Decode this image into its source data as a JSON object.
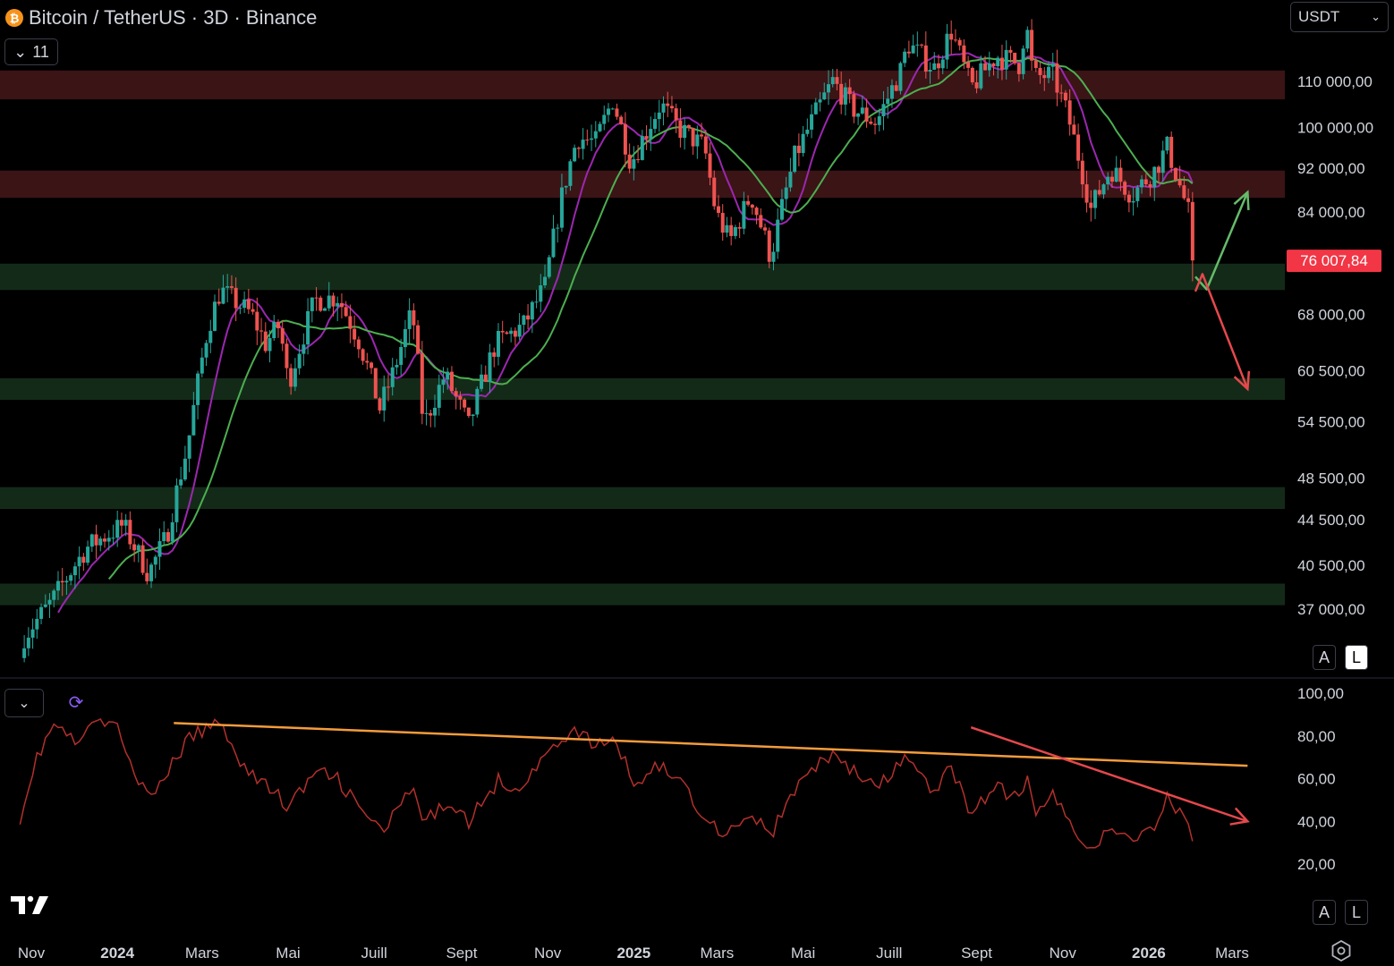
{
  "header": {
    "title": "Bitcoin / TetherUS · 3D · Binance",
    "coin_icon": "bitcoin-icon",
    "indicators_count": "11"
  },
  "currency": {
    "label": "USDT"
  },
  "scale_buttons": {
    "auto": "A",
    "log": "L"
  },
  "colors": {
    "up": "#26a69a",
    "down": "#ef5350",
    "ma_fast": "#9c27b0",
    "ma_slow": "#4caf50",
    "resistance_zone": "#3b1416",
    "support_zone": "#142a18",
    "rsi": "#b2302c",
    "trend_orange": "#f39c3c",
    "trend_red": "#e5484d"
  },
  "chart_data": [
    {
      "type": "candlestick",
      "title": "Bitcoin / TetherUS · 3D · Binance",
      "scale": "log",
      "ylim": [
        30600,
        125000
      ],
      "last_price": "76 007,84",
      "y_ticks": [
        {
          "value": 110000,
          "label": "110 000,00"
        },
        {
          "value": 100000,
          "label": "100 000,00"
        },
        {
          "value": 92000,
          "label": "92 000,00"
        },
        {
          "value": 84000,
          "label": "84 000,00"
        },
        {
          "value": 68000,
          "label": "68 000,00"
        },
        {
          "value": 60500,
          "label": "60 500,00"
        },
        {
          "value": 54500,
          "label": "54 500,00"
        },
        {
          "value": 48500,
          "label": "48 500,00"
        },
        {
          "value": 44500,
          "label": "44 500,00"
        },
        {
          "value": 40500,
          "label": "40 500,00"
        },
        {
          "value": 37000,
          "label": "37 000,00"
        }
      ],
      "x_ticks": [
        {
          "date": "2023-11-01",
          "label": "Nov",
          "bold": false
        },
        {
          "date": "2024-01-01",
          "label": "2024",
          "bold": true
        },
        {
          "date": "2024-03-01",
          "label": "Mars",
          "bold": false
        },
        {
          "date": "2024-05-01",
          "label": "Mai",
          "bold": false
        },
        {
          "date": "2024-07-01",
          "label": "Juill",
          "bold": false
        },
        {
          "date": "2024-09-01",
          "label": "Sept",
          "bold": false
        },
        {
          "date": "2024-11-01",
          "label": "Nov",
          "bold": false
        },
        {
          "date": "2025-01-01",
          "label": "2025",
          "bold": true
        },
        {
          "date": "2025-03-01",
          "label": "Mars",
          "bold": false
        },
        {
          "date": "2025-05-01",
          "label": "Mai",
          "bold": false
        },
        {
          "date": "2025-07-01",
          "label": "Juill",
          "bold": false
        },
        {
          "date": "2025-09-01",
          "label": "Sept",
          "bold": false
        },
        {
          "date": "2025-11-01",
          "label": "Nov",
          "bold": false
        },
        {
          "date": "2026-01-01",
          "label": "2026",
          "bold": true
        },
        {
          "date": "2026-03-01",
          "label": "Mars",
          "bold": false
        }
      ],
      "zones": [
        {
          "kind": "resistance",
          "from": 106000,
          "to": 112500
        },
        {
          "kind": "resistance",
          "from": 86500,
          "to": 91500
        },
        {
          "kind": "support",
          "from": 71500,
          "to": 75500
        },
        {
          "kind": "support",
          "from": 57000,
          "to": 59600
        },
        {
          "kind": "support",
          "from": 45500,
          "to": 47600
        },
        {
          "kind": "support",
          "from": 37300,
          "to": 39000
        }
      ],
      "close_anchors": [
        [
          "2023-10-27",
          35000
        ],
        [
          "2023-11-15",
          37500
        ],
        [
          "2023-12-10",
          42000
        ],
        [
          "2024-01-05",
          44000
        ],
        [
          "2024-01-23",
          39800
        ],
        [
          "2024-02-05",
          43000
        ],
        [
          "2024-02-20",
          52000
        ],
        [
          "2024-03-05",
          66000
        ],
        [
          "2024-03-14",
          71500
        ],
        [
          "2024-04-05",
          68000
        ],
        [
          "2024-04-15",
          64000
        ],
        [
          "2024-04-25",
          66500
        ],
        [
          "2024-05-01",
          58800
        ],
        [
          "2024-05-20",
          70000
        ],
        [
          "2024-06-05",
          70500
        ],
        [
          "2024-06-20",
          64500
        ],
        [
          "2024-07-05",
          56000
        ],
        [
          "2024-07-15",
          60500
        ],
        [
          "2024-07-28",
          68500
        ],
        [
          "2024-08-05",
          54000
        ],
        [
          "2024-08-20",
          60000
        ],
        [
          "2024-09-06",
          54000
        ],
        [
          "2024-09-25",
          64000
        ],
        [
          "2024-10-15",
          66500
        ],
        [
          "2024-10-30",
          72000
        ],
        [
          "2024-11-12",
          88000
        ],
        [
          "2024-11-22",
          98000
        ],
        [
          "2024-12-05",
          97000
        ],
        [
          "2024-12-17",
          106000
        ],
        [
          "2024-12-30",
          93000
        ],
        [
          "2025-01-20",
          105000
        ],
        [
          "2025-02-01",
          100000
        ],
        [
          "2025-02-20",
          96000
        ],
        [
          "2025-02-28",
          84000
        ],
        [
          "2025-03-10",
          79000
        ],
        [
          "2025-03-25",
          87000
        ],
        [
          "2025-04-08",
          76500
        ],
        [
          "2025-04-25",
          94000
        ],
        [
          "2025-05-10",
          103000
        ],
        [
          "2025-05-22",
          110000
        ],
        [
          "2025-06-05",
          104000
        ],
        [
          "2025-06-22",
          101000
        ],
        [
          "2025-07-10",
          113000
        ],
        [
          "2025-07-14",
          119000
        ],
        [
          "2025-08-02",
          113000
        ],
        [
          "2025-08-14",
          122000
        ],
        [
          "2025-08-28",
          108500
        ],
        [
          "2025-09-15",
          116000
        ],
        [
          "2025-10-01",
          114000
        ],
        [
          "2025-10-06",
          124000
        ],
        [
          "2025-10-11",
          111000
        ],
        [
          "2025-10-25",
          111500
        ],
        [
          "2025-11-05",
          102000
        ],
        [
          "2025-11-21",
          84500
        ],
        [
          "2025-12-05",
          92000
        ],
        [
          "2025-12-20",
          87000
        ],
        [
          "2026-01-05",
          91500
        ],
        [
          "2026-01-14",
          96000
        ],
        [
          "2026-01-22",
          89500
        ],
        [
          "2026-01-29",
          84000
        ],
        [
          "2026-02-03",
          76000
        ]
      ],
      "series": [
        {
          "name": "",
          "kind": "ma",
          "period": 9,
          "color": "#9c27b0"
        },
        {
          "name": "",
          "kind": "ma",
          "period": 21,
          "color": "#4caf50"
        }
      ],
      "annotations": [
        {
          "type": "arrow",
          "color": "#66bb6a",
          "points": [
            [
              "2026-02-03",
              73500
            ],
            [
              "2026-02-11",
              71600
            ],
            [
              "2026-03-12",
              87500
            ]
          ]
        },
        {
          "type": "arrow",
          "color": "#e5484d",
          "points": [
            [
              "2026-02-03",
              71300
            ],
            [
              "2026-02-08",
              73900
            ],
            [
              "2026-03-12",
              58300
            ]
          ]
        }
      ]
    },
    {
      "type": "line",
      "title": "",
      "ylim": [
        16,
        104
      ],
      "y_ticks": [
        {
          "value": 100,
          "label": "100,00"
        },
        {
          "value": 80,
          "label": "80,00"
        },
        {
          "value": 60,
          "label": "60,00"
        },
        {
          "value": 40,
          "label": "40,00"
        },
        {
          "value": 20,
          "label": "20,00"
        }
      ],
      "anchors": [
        [
          "2023-10-24",
          42
        ],
        [
          "2023-11-05",
          70
        ],
        [
          "2023-11-18",
          86
        ],
        [
          "2023-12-02",
          76
        ],
        [
          "2023-12-15",
          85
        ],
        [
          "2023-12-28",
          88
        ],
        [
          "2024-01-10",
          70
        ],
        [
          "2024-01-24",
          48
        ],
        [
          "2024-02-05",
          63
        ],
        [
          "2024-02-20",
          78
        ],
        [
          "2024-03-05",
          84
        ],
        [
          "2024-03-14",
          87
        ],
        [
          "2024-04-01",
          64
        ],
        [
          "2024-04-20",
          55
        ],
        [
          "2024-05-01",
          46
        ],
        [
          "2024-05-20",
          63
        ],
        [
          "2024-06-05",
          60
        ],
        [
          "2024-06-25",
          42
        ],
        [
          "2024-07-08",
          36
        ],
        [
          "2024-07-28",
          55
        ],
        [
          "2024-08-05",
          39
        ],
        [
          "2024-08-25",
          50
        ],
        [
          "2024-09-06",
          40
        ],
        [
          "2024-09-28",
          60
        ],
        [
          "2024-10-10",
          55
        ],
        [
          "2024-10-28",
          68
        ],
        [
          "2024-11-12",
          80
        ],
        [
          "2024-11-22",
          82
        ],
        [
          "2024-12-05",
          75
        ],
        [
          "2024-12-18",
          79
        ],
        [
          "2025-01-01",
          58
        ],
        [
          "2025-01-20",
          67
        ],
        [
          "2025-02-05",
          57
        ],
        [
          "2025-02-25",
          38
        ],
        [
          "2025-03-08",
          35
        ],
        [
          "2025-03-25",
          44
        ],
        [
          "2025-04-08",
          33
        ],
        [
          "2025-04-25",
          55
        ],
        [
          "2025-05-10",
          65
        ],
        [
          "2025-05-22",
          72
        ],
        [
          "2025-06-10",
          61
        ],
        [
          "2025-06-22",
          55
        ],
        [
          "2025-07-10",
          67
        ],
        [
          "2025-07-14",
          71
        ],
        [
          "2025-08-02",
          52
        ],
        [
          "2025-08-14",
          66
        ],
        [
          "2025-08-28",
          44
        ],
        [
          "2025-09-15",
          56
        ],
        [
          "2025-10-01",
          50
        ],
        [
          "2025-10-06",
          62
        ],
        [
          "2025-10-11",
          45
        ],
        [
          "2025-10-25",
          52
        ],
        [
          "2025-11-05",
          40
        ],
        [
          "2025-11-21",
          28
        ],
        [
          "2025-12-05",
          35
        ],
        [
          "2025-12-20",
          32
        ],
        [
          "2026-01-05",
          38
        ],
        [
          "2026-01-14",
          52
        ],
        [
          "2026-01-22",
          44
        ],
        [
          "2026-01-29",
          39
        ],
        [
          "2026-02-03",
          29
        ]
      ],
      "trendlines": [
        {
          "color": "#f39c3c",
          "from": [
            "2024-02-10",
            86
          ],
          "to": [
            "2026-03-12",
            66
          ],
          "arrow": false
        },
        {
          "color": "#e5484d",
          "from": [
            "2025-08-28",
            84
          ],
          "to": [
            "2026-03-12",
            40
          ],
          "arrow": true
        }
      ]
    }
  ]
}
